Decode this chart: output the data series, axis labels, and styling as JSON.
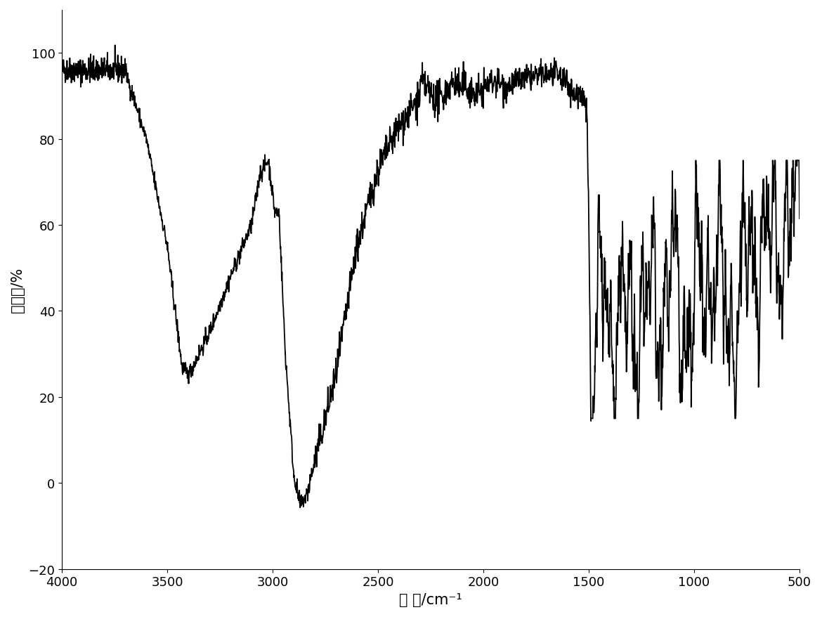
{
  "title": "",
  "xlabel": "波 数/cm⁻¹",
  "ylabel": "透光率/%",
  "xlim": [
    4000,
    500
  ],
  "ylim": [
    -20,
    110
  ],
  "yticks": [
    -20,
    0,
    20,
    40,
    60,
    80,
    100
  ],
  "xticks": [
    4000,
    3500,
    3000,
    2500,
    2000,
    1500,
    1000,
    500
  ],
  "line_color": "#000000",
  "line_width": 1.3,
  "background_color": "#ffffff",
  "xlabel_fontsize": 15,
  "ylabel_fontsize": 15,
  "tick_fontsize": 13
}
